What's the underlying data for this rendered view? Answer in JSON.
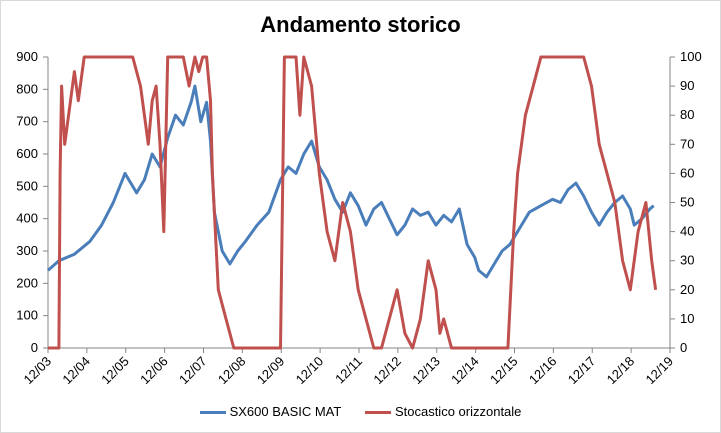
{
  "chart_data": {
    "type": "line",
    "title": "Andamento storico",
    "x_tick_labels": [
      "12/03",
      "12/04",
      "12/05",
      "12/06",
      "12/07",
      "12/08",
      "12/09",
      "12/10",
      "12/11",
      "12/12",
      "12/13",
      "12/14",
      "12/15",
      "12/16",
      "12/17",
      "12/18",
      "12/19"
    ],
    "y_left": {
      "ylim": [
        0,
        900
      ],
      "ticks": [
        0,
        100,
        200,
        300,
        400,
        500,
        600,
        700,
        800,
        900
      ]
    },
    "y_right": {
      "ylim": [
        0,
        100
      ],
      "ticks": [
        0,
        10,
        20,
        30,
        40,
        50,
        60,
        70,
        80,
        90,
        100
      ]
    },
    "grid": false,
    "legend_position": "bottom",
    "series": [
      {
        "name": "SX600 BASIC MAT",
        "axis": "left",
        "color": "#4a7ebb",
        "x": [
          2003.92,
          2004.2,
          2004.6,
          2005.0,
          2005.3,
          2005.6,
          2005.9,
          2006.2,
          2006.4,
          2006.6,
          2006.8,
          2007.0,
          2007.2,
          2007.4,
          2007.6,
          2007.7,
          2007.85,
          2008.0,
          2008.1,
          2008.2,
          2008.4,
          2008.6,
          2008.8,
          2009.0,
          2009.3,
          2009.6,
          2009.9,
          2010.1,
          2010.3,
          2010.5,
          2010.7,
          2010.9,
          2011.1,
          2011.3,
          2011.5,
          2011.7,
          2011.9,
          2012.1,
          2012.3,
          2012.5,
          2012.7,
          2012.9,
          2013.1,
          2013.3,
          2013.5,
          2013.7,
          2013.9,
          2014.1,
          2014.3,
          2014.5,
          2014.7,
          2014.9,
          2015.0,
          2015.2,
          2015.4,
          2015.6,
          2015.8,
          2016.0,
          2016.3,
          2016.6,
          2016.9,
          2017.1,
          2017.3,
          2017.5,
          2017.7,
          2017.9,
          2018.1,
          2018.3,
          2018.5,
          2018.7,
          2018.9,
          2019.0,
          2019.2,
          2019.4,
          2019.5
        ],
        "values": [
          240,
          270,
          290,
          330,
          380,
          450,
          540,
          480,
          520,
          600,
          560,
          650,
          720,
          690,
          760,
          810,
          700,
          760,
          640,
          420,
          300,
          260,
          300,
          330,
          380,
          420,
          520,
          560,
          540,
          600,
          640,
          560,
          520,
          460,
          420,
          480,
          440,
          380,
          430,
          450,
          400,
          350,
          380,
          430,
          410,
          420,
          380,
          410,
          390,
          430,
          320,
          280,
          240,
          220,
          260,
          300,
          320,
          360,
          420,
          440,
          460,
          450,
          490,
          510,
          470,
          420,
          380,
          420,
          450,
          470,
          430,
          380,
          400,
          430,
          440
        ]
      },
      {
        "name": "Stocastico orizzontale",
        "axis": "right",
        "color": "#c0504d",
        "x": [
          2003.92,
          2004.2,
          2004.23,
          2004.27,
          2004.35,
          2004.45,
          2004.6,
          2004.7,
          2004.85,
          2005.0,
          2005.2,
          2005.35,
          2005.5,
          2005.8,
          2006.0,
          2006.1,
          2006.2,
          2006.3,
          2006.4,
          2006.5,
          2006.6,
          2006.7,
          2006.8,
          2006.9,
          2007.0,
          2007.05,
          2007.1,
          2007.25,
          2007.4,
          2007.55,
          2007.7,
          2007.8,
          2007.9,
          2008.0,
          2008.1,
          2008.15,
          2008.3,
          2008.5,
          2008.7,
          2008.9,
          2009.0,
          2009.1,
          2009.3,
          2009.5,
          2009.7,
          2009.9,
          2010.0,
          2010.1,
          2010.3,
          2010.4,
          2010.5,
          2010.7,
          2010.9,
          2011.1,
          2011.3,
          2011.5,
          2011.7,
          2011.9,
          2012.1,
          2012.3,
          2012.5,
          2012.7,
          2012.9,
          2013.1,
          2013.3,
          2013.5,
          2013.7,
          2013.9,
          2014.0,
          2014.1,
          2014.3,
          2014.5,
          2014.7,
          2014.9,
          2015.0,
          2015.2,
          2015.4,
          2015.6,
          2015.75,
          2015.9,
          2016.0,
          2016.2,
          2016.4,
          2016.6,
          2016.8,
          2017.0,
          2017.1,
          2017.3,
          2017.5,
          2017.7,
          2017.9,
          2018.0,
          2018.1,
          2018.3,
          2018.5,
          2018.7,
          2018.9,
          2019.0,
          2019.1,
          2019.3,
          2019.45,
          2019.55
        ],
        "values": [
          0,
          0,
          60,
          90,
          70,
          80,
          95,
          85,
          100,
          100,
          100,
          100,
          100,
          100,
          100,
          100,
          95,
          90,
          80,
          70,
          85,
          90,
          70,
          40,
          100,
          100,
          100,
          100,
          100,
          90,
          100,
          95,
          100,
          100,
          85,
          60,
          20,
          10,
          0,
          0,
          0,
          0,
          0,
          0,
          0,
          0,
          100,
          100,
          100,
          80,
          100,
          90,
          60,
          40,
          30,
          50,
          40,
          20,
          10,
          0,
          0,
          10,
          20,
          5,
          0,
          10,
          30,
          20,
          5,
          10,
          0,
          0,
          0,
          0,
          0,
          0,
          0,
          0,
          0,
          40,
          60,
          80,
          90,
          100,
          100,
          100,
          100,
          100,
          100,
          100,
          90,
          80,
          70,
          60,
          50,
          30,
          20,
          30,
          40,
          50,
          30,
          20
        ]
      }
    ]
  }
}
